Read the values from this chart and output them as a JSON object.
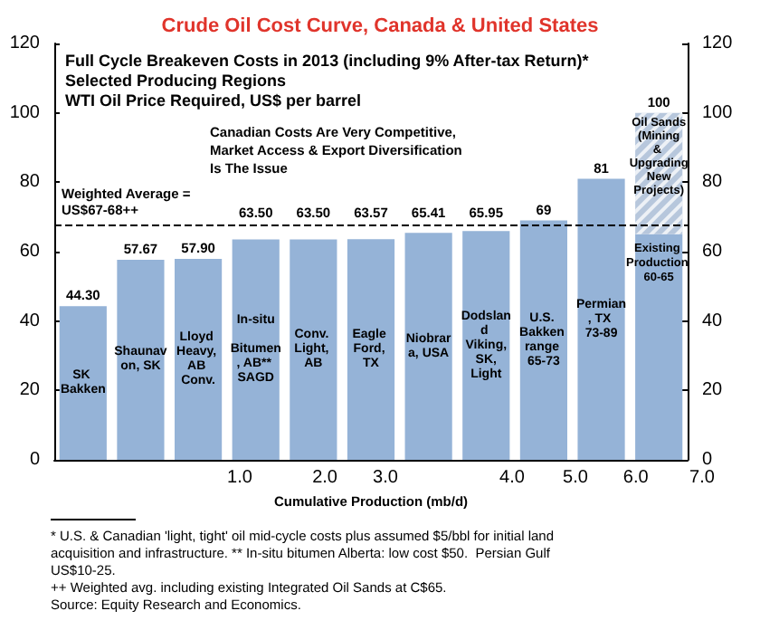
{
  "chart_data": {
    "type": "bar",
    "title": "Crude Oil Cost Curve, Canada & United States",
    "subtitle": "Full Cycle Breakeven Costs in 2013 (including 9% After-tax Return)*\nSelected Producing Regions\nWTI Oil Price Required, US$ per barrel",
    "xlabel": "Cumulative Production (mb/d)",
    "categories": [
      "SK Bakken",
      "Shaunavon, SK",
      "Lloyd Heavy, AB Conv.",
      "In-situ Bitumen, AB** SAGD",
      "Conv. Light, AB",
      "Eagle Ford, TX",
      "Niobrara, USA",
      "Dodsland Viking, SK, Light",
      "U.S. Bakken range 65-73",
      "Permian, TX 73-89",
      "Oil Sands (Mining & Upgrading New Projects)"
    ],
    "stacked": true,
    "series": [
      {
        "color": "#95b3d7",
        "values": [
          44.3,
          57.67,
          57.9,
          63.5,
          63.5,
          63.57,
          65.41,
          65.95,
          69,
          81,
          65
        ]
      },
      {
        "color": "#b7c7dc",
        "values": [
          null,
          null,
          null,
          null,
          null,
          null,
          null,
          null,
          null,
          null,
          35
        ]
      }
    ],
    "totals": [
      "44.30",
      "57.67",
      "57.90",
      "63.50",
      "63.50",
      "63.57",
      "65.41",
      "65.95",
      "69",
      "81",
      "100"
    ],
    "ylim": [
      0,
      120
    ],
    "yticks": [
      0,
      20,
      40,
      60,
      80,
      100,
      120
    ],
    "y2lim": [
      0,
      120
    ],
    "y2ticks": [
      0,
      20,
      40,
      60,
      80,
      100,
      120
    ],
    "ref_lines": [
      {
        "axis": "y",
        "value": 67.5,
        "label": "Weighted Average = US$67-68++",
        "color": "#000000",
        "line_style": "dashed"
      }
    ],
    "annotations": [
      "Canadian Costs Are Very Competitive, Market Access & Export Diversification Is The Issue",
      "Existing Production 60-65",
      "1.0",
      "2.0",
      "3.0",
      "4.0",
      "5.0",
      "6.0",
      "7.0",
      "* U.S. & Canadian 'light, tight' oil mid-cycle costs plus assumed $5/bbl for initial land acquisition and infrastructure. ** In-situ bitumen Alberta: low cost $50.  Persian Gulf US$10-25.",
      "++ Weighted avg. including existing Integrated Oil Sands at C$65.",
      "Source: Equity Research and Economics."
    ]
  }
}
